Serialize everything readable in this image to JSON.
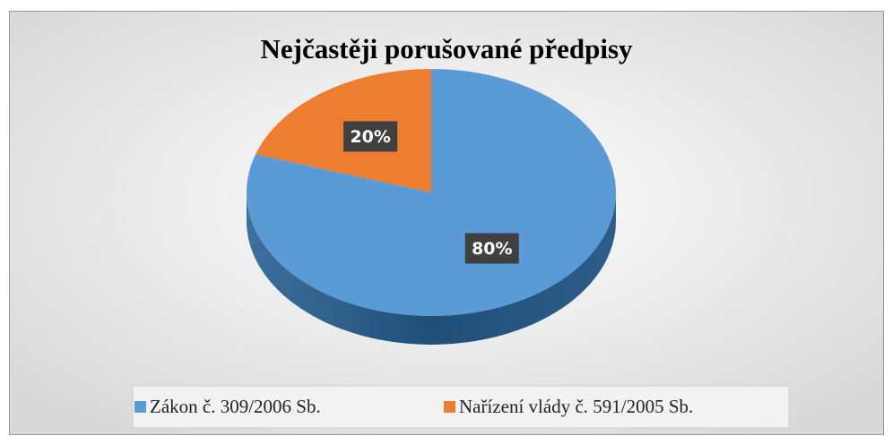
{
  "chart_data": {
    "type": "pie",
    "title": "Nejčastěji porušované předpisy",
    "categories": [
      "Zákon č. 309/2006 Sb.",
      "Nařízení vlády č. 591/2005 Sb."
    ],
    "values": [
      80,
      20
    ],
    "value_labels": [
      "80%",
      "20%"
    ],
    "colors": [
      "#5b9bd5",
      "#ed7d31"
    ],
    "legend": "bottom"
  }
}
